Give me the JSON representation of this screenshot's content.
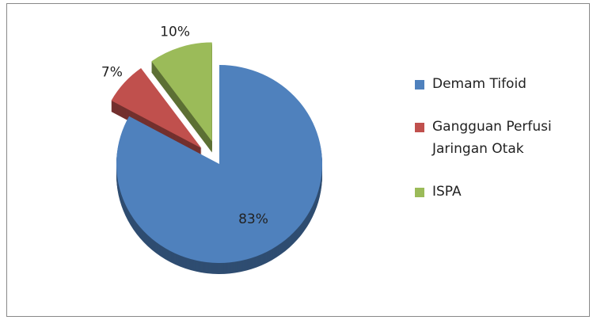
{
  "chart_data": {
    "type": "pie",
    "categories": [
      "Demam Tifoid",
      "Gangguan Perfusi Jaringan Otak",
      "ISPA"
    ],
    "values": [
      83,
      7,
      10
    ],
    "value_labels": [
      "83%",
      "7%",
      "10%"
    ],
    "colors": [
      "#4f81bd",
      "#c0504d",
      "#9bbb59"
    ],
    "exploded": [
      false,
      true,
      true
    ],
    "legend": "right"
  }
}
